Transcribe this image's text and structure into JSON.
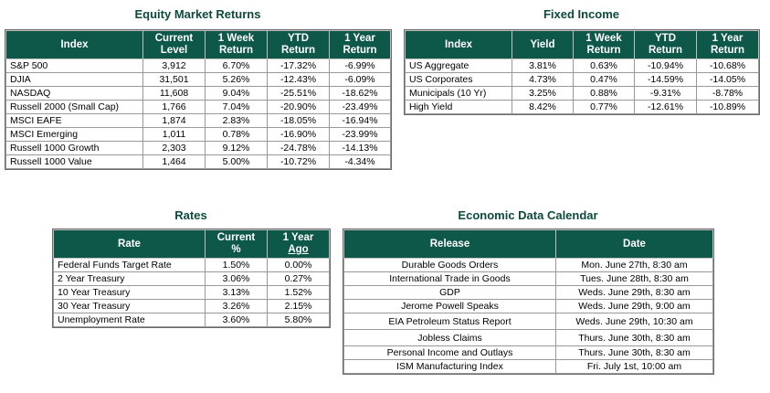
{
  "equity": {
    "title": "Equity Market Returns",
    "headers": {
      "index": "Index",
      "current": [
        "Current",
        "Level"
      ],
      "week": [
        "1 Week",
        "Return"
      ],
      "ytd": [
        "YTD",
        "Return"
      ],
      "year": [
        "1 Year",
        "Return"
      ]
    },
    "rows": [
      {
        "name": "S&P 500",
        "level": "3,912",
        "week": "6.70%",
        "ytd": "-17.32%",
        "year": "-6.99%"
      },
      {
        "name": "DJIA",
        "level": "31,501",
        "week": "5.26%",
        "ytd": "-12.43%",
        "year": "-6.09%"
      },
      {
        "name": "NASDAQ",
        "level": "11,608",
        "week": "9.04%",
        "ytd": "-25.51%",
        "year": "-18.62%"
      },
      {
        "name": "Russell 2000 (Small Cap)",
        "level": "1,766",
        "week": "7.04%",
        "ytd": "-20.90%",
        "year": "-23.49%"
      },
      {
        "name": "MSCI EAFE",
        "level": "1,874",
        "week": "2.83%",
        "ytd": "-18.05%",
        "year": "-16.94%"
      },
      {
        "name": "MSCI Emerging",
        "level": "1,011",
        "week": "0.78%",
        "ytd": "-16.90%",
        "year": "-23.99%"
      },
      {
        "name": "Russell 1000 Growth",
        "level": "2,303",
        "week": "9.12%",
        "ytd": "-24.78%",
        "year": "-14.13%"
      },
      {
        "name": "Russell 1000 Value",
        "level": "1,464",
        "week": "5.00%",
        "ytd": "-10.72%",
        "year": "-4.34%"
      }
    ]
  },
  "fixed": {
    "title": "Fixed Income",
    "headers": {
      "index": "Index",
      "yield": "Yield",
      "week": [
        "1 Week",
        "Return"
      ],
      "ytd": [
        "YTD",
        "Return"
      ],
      "year": [
        "1 Year",
        "Return"
      ]
    },
    "rows": [
      {
        "name": "US Aggregate",
        "yield": "3.81%",
        "week": "0.63%",
        "ytd": "-10.94%",
        "year": "-10.68%"
      },
      {
        "name": "US Corporates",
        "yield": "4.73%",
        "week": "0.47%",
        "ytd": "-14.59%",
        "year": "-14.05%"
      },
      {
        "name": "Municipals (10 Yr)",
        "yield": "3.25%",
        "week": "0.88%",
        "ytd": "-9.31%",
        "year": "-8.78%"
      },
      {
        "name": "High Yield",
        "yield": "8.42%",
        "week": "0.77%",
        "ytd": "-12.61%",
        "year": "-10.89%"
      }
    ]
  },
  "rates": {
    "title": "Rates",
    "headers": {
      "rate": "Rate",
      "current": [
        "Current",
        "%"
      ],
      "year": [
        "1 Year",
        "Ago"
      ]
    },
    "rows": [
      {
        "name": "Federal Funds Target Rate",
        "current": "1.50%",
        "ago": "0.00%"
      },
      {
        "name": "2 Year Treasury",
        "current": "3.06%",
        "ago": "0.27%"
      },
      {
        "name": "10 Year Treasury",
        "current": "3.13%",
        "ago": "1.52%"
      },
      {
        "name": "30 Year Treasury",
        "current": "3.26%",
        "ago": "2.15%"
      },
      {
        "name": "Unemployment Rate",
        "current": "3.60%",
        "ago": "5.80%"
      }
    ]
  },
  "calendar": {
    "title": "Economic Data Calendar",
    "headers": {
      "release": "Release",
      "date": "Date"
    },
    "rows": [
      {
        "release": "Durable Goods Orders",
        "date": "Mon. June 27th, 8:30 am"
      },
      {
        "release": "International Trade in Goods",
        "date": "Tues. June 28th, 8:30 am"
      },
      {
        "release": "GDP",
        "date": "Weds. June 29th, 8:30 am"
      },
      {
        "release": "Jerome Powell Speaks",
        "date": "Weds. June 29th, 9:00 am"
      },
      {
        "release": "EIA Petroleum Status Report",
        "date": "Weds. June 29th, 10:30 am"
      },
      {
        "release": "Jobless Claims",
        "date": "Thurs. June 30th, 8:30 am"
      },
      {
        "release": "Personal Income and Outlays",
        "date": "Thurs. June 30th, 8:30 am"
      },
      {
        "release": "ISM Manufacturing Index",
        "date": "Fri. July 1st, 10:00 am"
      }
    ]
  }
}
